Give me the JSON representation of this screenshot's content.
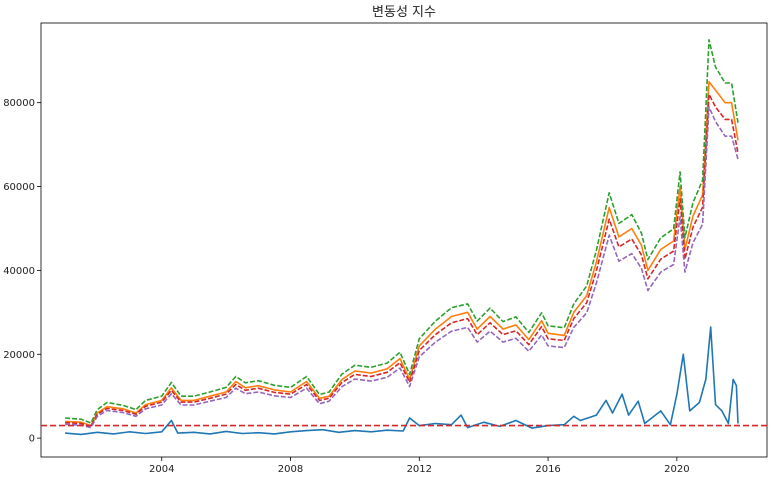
{
  "chart_data": {
    "type": "line",
    "title": "변동성 지수",
    "xlabel": "",
    "ylabel": "",
    "xlim": [
      2000.25,
      2022.8
    ],
    "ylim": [
      -4500,
      99000
    ],
    "x_ticks": [
      2004,
      2008,
      2012,
      2016,
      2020
    ],
    "y_ticks": [
      0,
      20000,
      40000,
      60000,
      80000
    ],
    "grid": false,
    "legend": "none",
    "hline": {
      "y": 3000,
      "color": "#d62728",
      "style": "dashed"
    },
    "series": [
      {
        "color": "#1f77b4",
        "style": "solid",
        "points": [
          [
            2001.0,
            1200
          ],
          [
            2001.5,
            900
          ],
          [
            2002.0,
            1400
          ],
          [
            2002.5,
            1000
          ],
          [
            2003.0,
            1500
          ],
          [
            2003.5,
            1100
          ],
          [
            2004.0,
            1500
          ],
          [
            2004.3,
            4200
          ],
          [
            2004.5,
            1200
          ],
          [
            2005.0,
            1400
          ],
          [
            2005.5,
            1000
          ],
          [
            2006.0,
            1600
          ],
          [
            2006.5,
            1100
          ],
          [
            2007.0,
            1300
          ],
          [
            2007.5,
            1000
          ],
          [
            2008.0,
            1500
          ],
          [
            2008.5,
            1800
          ],
          [
            2009.0,
            2000
          ],
          [
            2009.5,
            1400
          ],
          [
            2010.0,
            1800
          ],
          [
            2010.5,
            1500
          ],
          [
            2011.0,
            1900
          ],
          [
            2011.5,
            1700
          ],
          [
            2011.7,
            4800
          ],
          [
            2012.0,
            3000
          ],
          [
            2012.5,
            3500
          ],
          [
            2013.0,
            3200
          ],
          [
            2013.3,
            5500
          ],
          [
            2013.5,
            2500
          ],
          [
            2014.0,
            3800
          ],
          [
            2014.5,
            2800
          ],
          [
            2015.0,
            4200
          ],
          [
            2015.5,
            2400
          ],
          [
            2016.0,
            3000
          ],
          [
            2016.5,
            3200
          ],
          [
            2016.8,
            5200
          ],
          [
            2017.0,
            4200
          ],
          [
            2017.5,
            5500
          ],
          [
            2017.8,
            9000
          ],
          [
            2018.0,
            6000
          ],
          [
            2018.3,
            10500
          ],
          [
            2018.5,
            5500
          ],
          [
            2018.8,
            8800
          ],
          [
            2019.0,
            3500
          ],
          [
            2019.5,
            6500
          ],
          [
            2019.8,
            3200
          ],
          [
            2020.0,
            10500
          ],
          [
            2020.2,
            20000
          ],
          [
            2020.4,
            6500
          ],
          [
            2020.7,
            8500
          ],
          [
            2020.9,
            14000
          ],
          [
            2021.05,
            26500
          ],
          [
            2021.2,
            8000
          ],
          [
            2021.4,
            6500
          ],
          [
            2021.6,
            3500
          ],
          [
            2021.75,
            14000
          ],
          [
            2021.85,
            12500
          ],
          [
            2021.9,
            3500
          ]
        ]
      },
      {
        "color": "#ff7f0e",
        "style": "solid",
        "points": [
          [
            2001.0,
            4000
          ],
          [
            2001.5,
            3800
          ],
          [
            2001.8,
            3000
          ],
          [
            2002.0,
            6000
          ],
          [
            2002.3,
            7500
          ],
          [
            2002.8,
            7000
          ],
          [
            2003.2,
            6000
          ],
          [
            2003.5,
            8000
          ],
          [
            2004.0,
            9000
          ],
          [
            2004.3,
            12000
          ],
          [
            2004.6,
            9000
          ],
          [
            2005.0,
            9000
          ],
          [
            2005.5,
            10000
          ],
          [
            2006.0,
            11000
          ],
          [
            2006.3,
            13500
          ],
          [
            2006.6,
            12000
          ],
          [
            2007.0,
            12500
          ],
          [
            2007.5,
            11500
          ],
          [
            2008.0,
            11000
          ],
          [
            2008.5,
            13500
          ],
          [
            2008.9,
            9500
          ],
          [
            2009.2,
            10000
          ],
          [
            2009.6,
            14000
          ],
          [
            2010.0,
            16000
          ],
          [
            2010.5,
            15500
          ],
          [
            2011.0,
            16500
          ],
          [
            2011.4,
            19000
          ],
          [
            2011.7,
            14000
          ],
          [
            2012.0,
            22000
          ],
          [
            2012.5,
            26000
          ],
          [
            2013.0,
            29000
          ],
          [
            2013.5,
            30000
          ],
          [
            2013.8,
            26000
          ],
          [
            2014.2,
            29000
          ],
          [
            2014.6,
            26000
          ],
          [
            2015.0,
            27000
          ],
          [
            2015.4,
            23500
          ],
          [
            2015.8,
            28000
          ],
          [
            2016.0,
            25000
          ],
          [
            2016.5,
            24500
          ],
          [
            2016.8,
            30000
          ],
          [
            2017.2,
            34000
          ],
          [
            2017.5,
            42000
          ],
          [
            2017.9,
            55000
          ],
          [
            2018.2,
            48000
          ],
          [
            2018.6,
            50000
          ],
          [
            2018.9,
            46000
          ],
          [
            2019.1,
            40000
          ],
          [
            2019.5,
            45000
          ],
          [
            2019.9,
            47000
          ],
          [
            2020.1,
            60000
          ],
          [
            2020.25,
            45000
          ],
          [
            2020.5,
            53000
          ],
          [
            2020.8,
            58000
          ],
          [
            2021.0,
            85000
          ],
          [
            2021.2,
            83000
          ],
          [
            2021.5,
            80000
          ],
          [
            2021.7,
            80000
          ],
          [
            2021.9,
            71000
          ]
        ]
      },
      {
        "color": "#2ca02c",
        "style": "dashed",
        "points": [
          [
            2001.0,
            4800
          ],
          [
            2001.5,
            4500
          ],
          [
            2001.8,
            3600
          ],
          [
            2002.0,
            6800
          ],
          [
            2002.3,
            8500
          ],
          [
            2002.8,
            7800
          ],
          [
            2003.2,
            6800
          ],
          [
            2003.5,
            9000
          ],
          [
            2004.0,
            10000
          ],
          [
            2004.3,
            13300
          ],
          [
            2004.6,
            10000
          ],
          [
            2005.0,
            10000
          ],
          [
            2005.5,
            11000
          ],
          [
            2006.0,
            12100
          ],
          [
            2006.3,
            14700
          ],
          [
            2006.6,
            13200
          ],
          [
            2007.0,
            13700
          ],
          [
            2007.5,
            12600
          ],
          [
            2008.0,
            12100
          ],
          [
            2008.5,
            14700
          ],
          [
            2008.9,
            10400
          ],
          [
            2009.2,
            11000
          ],
          [
            2009.6,
            15300
          ],
          [
            2010.0,
            17400
          ],
          [
            2010.5,
            16900
          ],
          [
            2011.0,
            17900
          ],
          [
            2011.4,
            20500
          ],
          [
            2011.7,
            15200
          ],
          [
            2012.0,
            23700
          ],
          [
            2012.5,
            27900
          ],
          [
            2013.0,
            31100
          ],
          [
            2013.5,
            32000
          ],
          [
            2013.8,
            27900
          ],
          [
            2014.2,
            31000
          ],
          [
            2014.6,
            27800
          ],
          [
            2015.0,
            28900
          ],
          [
            2015.4,
            25200
          ],
          [
            2015.8,
            29900
          ],
          [
            2016.0,
            26800
          ],
          [
            2016.5,
            26300
          ],
          [
            2016.8,
            32000
          ],
          [
            2017.2,
            36300
          ],
          [
            2017.5,
            44800
          ],
          [
            2017.9,
            58500
          ],
          [
            2018.2,
            51200
          ],
          [
            2018.6,
            53300
          ],
          [
            2018.9,
            48900
          ],
          [
            2019.1,
            42600
          ],
          [
            2019.5,
            47800
          ],
          [
            2019.9,
            49900
          ],
          [
            2020.1,
            63500
          ],
          [
            2020.25,
            47800
          ],
          [
            2020.5,
            56200
          ],
          [
            2020.8,
            61500
          ],
          [
            2021.0,
            95000
          ],
          [
            2021.2,
            88500
          ],
          [
            2021.5,
            84700
          ],
          [
            2021.7,
            84700
          ],
          [
            2021.9,
            75200
          ]
        ]
      },
      {
        "color": "#d62728",
        "style": "dashed",
        "points": [
          [
            2001.0,
            3700
          ],
          [
            2001.5,
            3500
          ],
          [
            2001.8,
            2800
          ],
          [
            2002.0,
            5700
          ],
          [
            2002.3,
            7100
          ],
          [
            2002.8,
            6600
          ],
          [
            2003.2,
            5700
          ],
          [
            2003.5,
            7600
          ],
          [
            2004.0,
            8600
          ],
          [
            2004.3,
            11400
          ],
          [
            2004.6,
            8600
          ],
          [
            2005.0,
            8600
          ],
          [
            2005.5,
            9500
          ],
          [
            2006.0,
            10500
          ],
          [
            2006.3,
            12800
          ],
          [
            2006.6,
            11400
          ],
          [
            2007.0,
            11900
          ],
          [
            2007.5,
            10900
          ],
          [
            2008.0,
            10500
          ],
          [
            2008.5,
            12800
          ],
          [
            2008.9,
            9000
          ],
          [
            2009.2,
            9500
          ],
          [
            2009.6,
            13300
          ],
          [
            2010.0,
            15200
          ],
          [
            2010.5,
            14700
          ],
          [
            2011.0,
            15700
          ],
          [
            2011.4,
            18000
          ],
          [
            2011.7,
            13300
          ],
          [
            2012.0,
            20900
          ],
          [
            2012.5,
            24700
          ],
          [
            2013.0,
            27500
          ],
          [
            2013.5,
            28500
          ],
          [
            2013.8,
            24700
          ],
          [
            2014.2,
            27500
          ],
          [
            2014.6,
            24700
          ],
          [
            2015.0,
            25600
          ],
          [
            2015.4,
            22300
          ],
          [
            2015.8,
            26600
          ],
          [
            2016.0,
            23700
          ],
          [
            2016.5,
            23300
          ],
          [
            2016.8,
            28500
          ],
          [
            2017.2,
            32300
          ],
          [
            2017.5,
            39900
          ],
          [
            2017.9,
            52200
          ],
          [
            2018.2,
            45600
          ],
          [
            2018.6,
            47500
          ],
          [
            2018.9,
            43700
          ],
          [
            2019.1,
            38000
          ],
          [
            2019.5,
            42700
          ],
          [
            2019.9,
            44600
          ],
          [
            2020.1,
            57000
          ],
          [
            2020.25,
            42700
          ],
          [
            2020.5,
            50300
          ],
          [
            2020.8,
            55100
          ],
          [
            2021.0,
            82000
          ],
          [
            2021.2,
            79000
          ],
          [
            2021.5,
            76000
          ],
          [
            2021.7,
            76000
          ],
          [
            2021.9,
            68000
          ]
        ]
      },
      {
        "color": "#9467bd",
        "style": "dashed",
        "points": [
          [
            2001.0,
            3300
          ],
          [
            2001.5,
            3100
          ],
          [
            2001.8,
            2500
          ],
          [
            2002.0,
            5200
          ],
          [
            2002.3,
            6600
          ],
          [
            2002.8,
            6100
          ],
          [
            2003.2,
            5200
          ],
          [
            2003.5,
            7000
          ],
          [
            2004.0,
            7900
          ],
          [
            2004.3,
            10600
          ],
          [
            2004.6,
            7900
          ],
          [
            2005.0,
            7900
          ],
          [
            2005.5,
            8800
          ],
          [
            2006.0,
            9700
          ],
          [
            2006.3,
            11900
          ],
          [
            2006.6,
            10600
          ],
          [
            2007.0,
            11000
          ],
          [
            2007.5,
            10100
          ],
          [
            2008.0,
            9700
          ],
          [
            2008.5,
            11900
          ],
          [
            2008.9,
            8200
          ],
          [
            2009.2,
            8800
          ],
          [
            2009.6,
            12300
          ],
          [
            2010.0,
            14100
          ],
          [
            2010.5,
            13600
          ],
          [
            2011.0,
            14500
          ],
          [
            2011.4,
            16700
          ],
          [
            2011.7,
            12300
          ],
          [
            2012.0,
            19400
          ],
          [
            2012.5,
            22900
          ],
          [
            2013.0,
            25500
          ],
          [
            2013.5,
            26400
          ],
          [
            2013.8,
            22900
          ],
          [
            2014.2,
            25500
          ],
          [
            2014.6,
            22900
          ],
          [
            2015.0,
            23800
          ],
          [
            2015.4,
            20700
          ],
          [
            2015.8,
            24600
          ],
          [
            2016.0,
            22000
          ],
          [
            2016.5,
            21600
          ],
          [
            2016.8,
            26400
          ],
          [
            2017.2,
            29900
          ],
          [
            2017.5,
            37000
          ],
          [
            2017.9,
            48400
          ],
          [
            2018.2,
            42200
          ],
          [
            2018.6,
            44000
          ],
          [
            2018.9,
            40500
          ],
          [
            2019.1,
            35200
          ],
          [
            2019.5,
            39600
          ],
          [
            2019.9,
            41400
          ],
          [
            2020.1,
            52800
          ],
          [
            2020.25,
            39600
          ],
          [
            2020.5,
            46600
          ],
          [
            2020.8,
            51000
          ],
          [
            2021.0,
            79000
          ],
          [
            2021.2,
            75500
          ],
          [
            2021.5,
            72000
          ],
          [
            2021.7,
            72000
          ],
          [
            2021.9,
            66500
          ]
        ]
      }
    ]
  }
}
